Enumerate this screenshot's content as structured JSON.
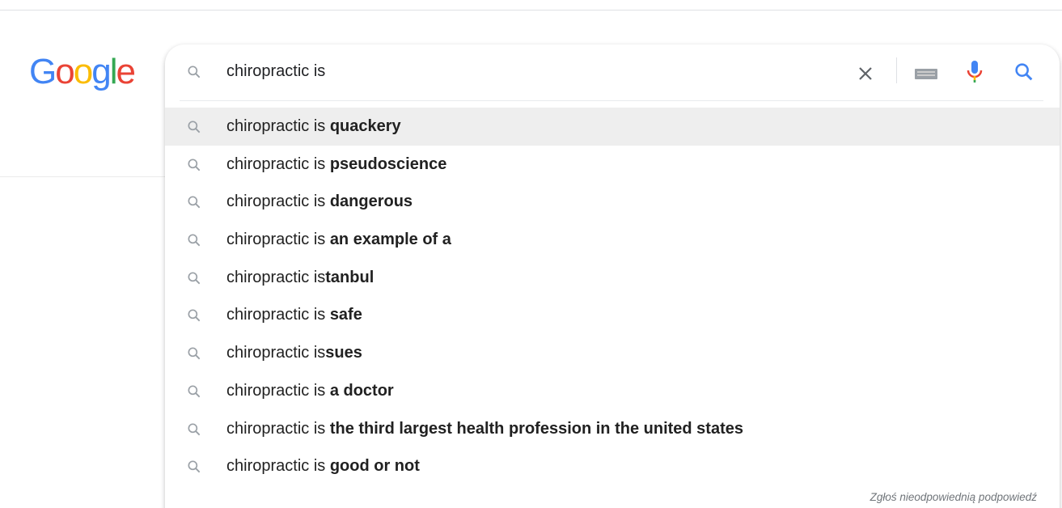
{
  "logo": "Google",
  "search": {
    "query": "chiropractic is",
    "suggestions": [
      {
        "prefix": "chiropractic is ",
        "bold": "quackery"
      },
      {
        "prefix": "chiropractic is ",
        "bold": "pseudoscience"
      },
      {
        "prefix": "chiropractic is ",
        "bold": "dangerous"
      },
      {
        "prefix": "chiropractic is ",
        "bold": "an example of a"
      },
      {
        "prefix": "chiropractic is",
        "bold": "tanbul"
      },
      {
        "prefix": "chiropractic is ",
        "bold": "safe"
      },
      {
        "prefix": "chiropractic is",
        "bold": "sues"
      },
      {
        "prefix": "chiropractic is ",
        "bold": "a doctor"
      },
      {
        "prefix": "chiropractic is ",
        "bold": "the third largest health profession in the united states"
      },
      {
        "prefix": "chiropractic is ",
        "bold": "good or not"
      }
    ],
    "report_link": "Zgłoś nieodpowiednią podpowiedź"
  }
}
